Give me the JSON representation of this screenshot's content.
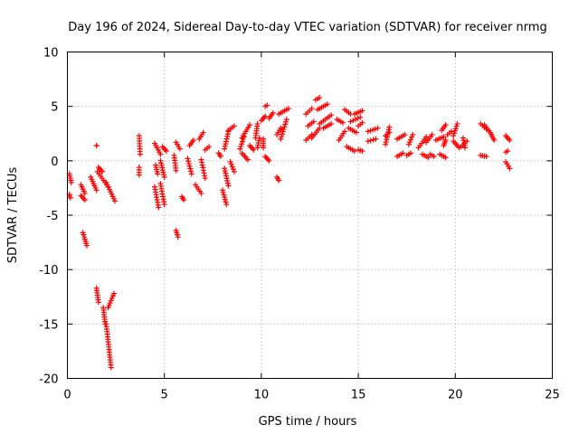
{
  "chart_data": {
    "type": "scatter",
    "title": "Day 196 of 2024, Sidereal Day-to-day VTEC variation (SDTVAR) for receiver nrmg",
    "xlabel": "GPS time / hours",
    "ylabel": "SDTVAR / TECUs",
    "xlim": [
      0,
      25
    ],
    "ylim": [
      -20,
      10
    ],
    "xticks": [
      0,
      5,
      10,
      15,
      20,
      25
    ],
    "yticks": [
      -20,
      -15,
      -10,
      -5,
      0,
      5,
      10
    ],
    "grid": true,
    "marker": "plus",
    "color": "#ff0000",
    "series": [
      {
        "name": "SDTVAR",
        "segments": [
          [
            0.1,
            -1.2,
            0.2,
            -2.0
          ],
          [
            0.1,
            -3.1,
            0.15,
            -3.4
          ],
          [
            0.7,
            -3.2,
            0.9,
            -3.6
          ],
          [
            0.7,
            -2.2,
            0.9,
            -3.0
          ],
          [
            0.8,
            -6.6,
            1.0,
            -7.8
          ],
          [
            1.2,
            -1.5,
            1.5,
            -2.7
          ],
          [
            1.5,
            -11.7,
            1.6,
            -13.0
          ],
          [
            1.55,
            -1.0,
            2.1,
            -2.4
          ],
          [
            1.6,
            -0.6,
            1.8,
            -1.0
          ],
          [
            1.5,
            1.4,
            1.5,
            1.4
          ],
          [
            1.85,
            -13.5,
            1.95,
            -15.0
          ],
          [
            2.0,
            -15.0,
            2.25,
            -19.0
          ],
          [
            2.1,
            -13.5,
            2.4,
            -12.2
          ],
          [
            2.0,
            -2.0,
            2.45,
            -3.7
          ],
          [
            3.7,
            2.3,
            3.75,
            0.6
          ],
          [
            3.7,
            -0.6,
            3.7,
            -1.3
          ],
          [
            4.5,
            1.6,
            4.8,
            0.6
          ],
          [
            4.55,
            -0.4,
            4.65,
            -1.2
          ],
          [
            4.5,
            -2.4,
            4.7,
            -4.3
          ],
          [
            4.8,
            -2.1,
            5.0,
            -4.0
          ],
          [
            4.8,
            0.0,
            5.0,
            -1.5
          ],
          [
            4.9,
            1.3,
            5.1,
            0.9
          ],
          [
            5.6,
            -6.4,
            5.7,
            -7.0
          ],
          [
            5.5,
            0.5,
            5.6,
            -0.9
          ],
          [
            5.6,
            1.7,
            5.8,
            1.1
          ],
          [
            5.9,
            -3.3,
            6.0,
            -3.6
          ],
          [
            6.2,
            0.2,
            6.4,
            -1.2
          ],
          [
            6.3,
            1.4,
            6.5,
            1.9
          ],
          [
            6.6,
            -2.2,
            6.9,
            -3.0
          ],
          [
            6.8,
            2.0,
            7.0,
            2.6
          ],
          [
            6.9,
            0.1,
            7.1,
            -1.6
          ],
          [
            7.1,
            1.0,
            7.3,
            1.3
          ],
          [
            7.8,
            0.7,
            7.9,
            0.4
          ],
          [
            8.1,
            -0.7,
            8.3,
            -2.3
          ],
          [
            8.0,
            -2.7,
            8.2,
            -4.0
          ],
          [
            8.1,
            1.1,
            8.3,
            2.7
          ],
          [
            8.3,
            2.8,
            8.6,
            3.2
          ],
          [
            8.4,
            -0.1,
            8.6,
            -1.0
          ],
          [
            8.9,
            1.1,
            9.1,
            2.2
          ],
          [
            9.0,
            0.7,
            9.3,
            0.1
          ],
          [
            9.0,
            2.1,
            9.4,
            3.3
          ],
          [
            9.4,
            1.4,
            9.6,
            1.0
          ],
          [
            9.7,
            2.1,
            9.8,
            3.4
          ],
          [
            9.8,
            1.2,
            9.9,
            2.1
          ],
          [
            10.0,
            3.7,
            10.2,
            4.1
          ],
          [
            10.1,
            1.2,
            10.1,
            2.0
          ],
          [
            10.2,
            0.4,
            10.4,
            0.0
          ],
          [
            10.2,
            5.0,
            10.3,
            5.1
          ],
          [
            10.4,
            3.9,
            10.6,
            4.4
          ],
          [
            10.8,
            -1.5,
            10.9,
            -1.8
          ],
          [
            10.8,
            2.4,
            11.0,
            3.0
          ],
          [
            10.9,
            4.3,
            11.4,
            4.8
          ],
          [
            11.0,
            2.0,
            11.3,
            3.8
          ],
          [
            12.3,
            1.9,
            12.6,
            2.4
          ],
          [
            12.3,
            4.3,
            12.6,
            4.8
          ],
          [
            12.4,
            3.2,
            12.7,
            3.6
          ],
          [
            12.6,
            2.1,
            13.0,
            3.0
          ],
          [
            12.8,
            5.6,
            13.0,
            5.8
          ],
          [
            12.9,
            4.7,
            13.4,
            5.2
          ],
          [
            13.0,
            3.4,
            13.6,
            4.2
          ],
          [
            13.2,
            3.0,
            13.6,
            3.4
          ],
          [
            13.9,
            3.8,
            14.2,
            3.5
          ],
          [
            14.0,
            1.9,
            14.3,
            2.7
          ],
          [
            14.3,
            4.7,
            14.6,
            4.3
          ],
          [
            14.4,
            1.3,
            14.8,
            0.9
          ],
          [
            14.5,
            3.0,
            14.9,
            2.6
          ],
          [
            14.6,
            3.6,
            15.1,
            4.0
          ],
          [
            14.8,
            4.3,
            15.2,
            4.6
          ],
          [
            15.0,
            1.0,
            15.2,
            0.9
          ],
          [
            15.0,
            3.2,
            15.2,
            3.5
          ],
          [
            15.5,
            2.7,
            16.0,
            3.0
          ],
          [
            15.5,
            1.8,
            15.9,
            2.0
          ],
          [
            16.4,
            1.5,
            16.6,
            3.1
          ],
          [
            16.4,
            2.3,
            16.6,
            2.6
          ],
          [
            17.0,
            0.4,
            17.3,
            0.7
          ],
          [
            17.0,
            2.0,
            17.4,
            2.4
          ],
          [
            17.5,
            0.5,
            17.7,
            0.7
          ],
          [
            17.6,
            1.5,
            17.8,
            2.4
          ],
          [
            18.1,
            1.2,
            18.5,
            2.2
          ],
          [
            18.3,
            0.6,
            18.6,
            0.3
          ],
          [
            18.5,
            1.7,
            18.8,
            2.4
          ],
          [
            18.7,
            0.6,
            18.9,
            0.4
          ],
          [
            19.0,
            1.9,
            19.4,
            2.2
          ],
          [
            19.2,
            0.6,
            19.5,
            0.3
          ],
          [
            19.3,
            2.8,
            19.5,
            3.3
          ],
          [
            19.4,
            1.4,
            19.5,
            1.9
          ],
          [
            19.6,
            2.4,
            19.8,
            2.7
          ],
          [
            19.9,
            2.3,
            20.1,
            3.4
          ],
          [
            19.9,
            1.8,
            20.2,
            1.2
          ],
          [
            20.3,
            1.3,
            20.6,
            1.8
          ],
          [
            20.4,
            2.1,
            20.5,
            1.2
          ],
          [
            21.3,
            0.5,
            21.6,
            0.4
          ],
          [
            21.3,
            3.4,
            21.6,
            2.9
          ],
          [
            21.5,
            3.3,
            21.8,
            2.6
          ],
          [
            21.8,
            2.6,
            22.0,
            1.9
          ],
          [
            22.6,
            2.3,
            22.8,
            1.9
          ],
          [
            22.6,
            0.8,
            22.7,
            0.9
          ],
          [
            22.6,
            -0.1,
            22.8,
            -0.7
          ]
        ]
      }
    ]
  }
}
